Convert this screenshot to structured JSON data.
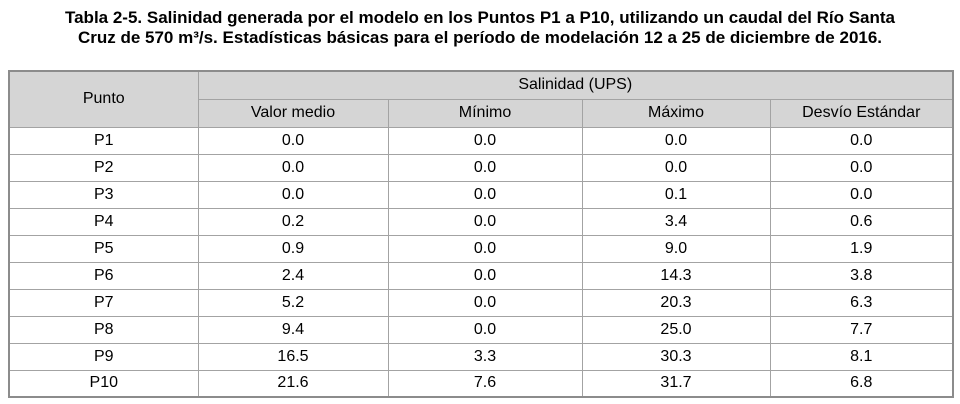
{
  "caption": {
    "line1": "Tabla 2-5. Salinidad generada por el modelo en los Puntos P1 a P10, utilizando un caudal del Río Santa",
    "line2": "Cruz de 570 m³/s. Estadísticas básicas para el período de modelación 12 a 25 de diciembre de 2016."
  },
  "table": {
    "corner_header": "Punto",
    "group_header": "Salinidad (UPS)",
    "sub_headers": [
      "Valor medio",
      "Mínimo",
      "Máximo",
      "Desvío Estándar"
    ],
    "rows": [
      {
        "punto": "P1",
        "valor_medio": "0.0",
        "minimo": "0.0",
        "maximo": "0.0",
        "desvio": "0.0"
      },
      {
        "punto": "P2",
        "valor_medio": "0.0",
        "minimo": "0.0",
        "maximo": "0.0",
        "desvio": "0.0"
      },
      {
        "punto": "P3",
        "valor_medio": "0.0",
        "minimo": "0.0",
        "maximo": "0.1",
        "desvio": "0.0"
      },
      {
        "punto": "P4",
        "valor_medio": "0.2",
        "minimo": "0.0",
        "maximo": "3.4",
        "desvio": "0.6"
      },
      {
        "punto": "P5",
        "valor_medio": "0.9",
        "minimo": "0.0",
        "maximo": "9.0",
        "desvio": "1.9"
      },
      {
        "punto": "P6",
        "valor_medio": "2.4",
        "minimo": "0.0",
        "maximo": "14.3",
        "desvio": "3.8"
      },
      {
        "punto": "P7",
        "valor_medio": "5.2",
        "minimo": "0.0",
        "maximo": "20.3",
        "desvio": "6.3"
      },
      {
        "punto": "P8",
        "valor_medio": "9.4",
        "minimo": "0.0",
        "maximo": "25.0",
        "desvio": "7.7"
      },
      {
        "punto": "P9",
        "valor_medio": "16.5",
        "minimo": "3.3",
        "maximo": "30.3",
        "desvio": "8.1"
      },
      {
        "punto": "P10",
        "valor_medio": "21.6",
        "minimo": "7.6",
        "maximo": "31.7",
        "desvio": "6.8"
      }
    ]
  },
  "colors": {
    "header_bg": "#d5d5d5",
    "inner_border": "#a3a3a3",
    "outer_border": "#8c8c8c",
    "text": "#000000",
    "page_bg": "#ffffff"
  }
}
